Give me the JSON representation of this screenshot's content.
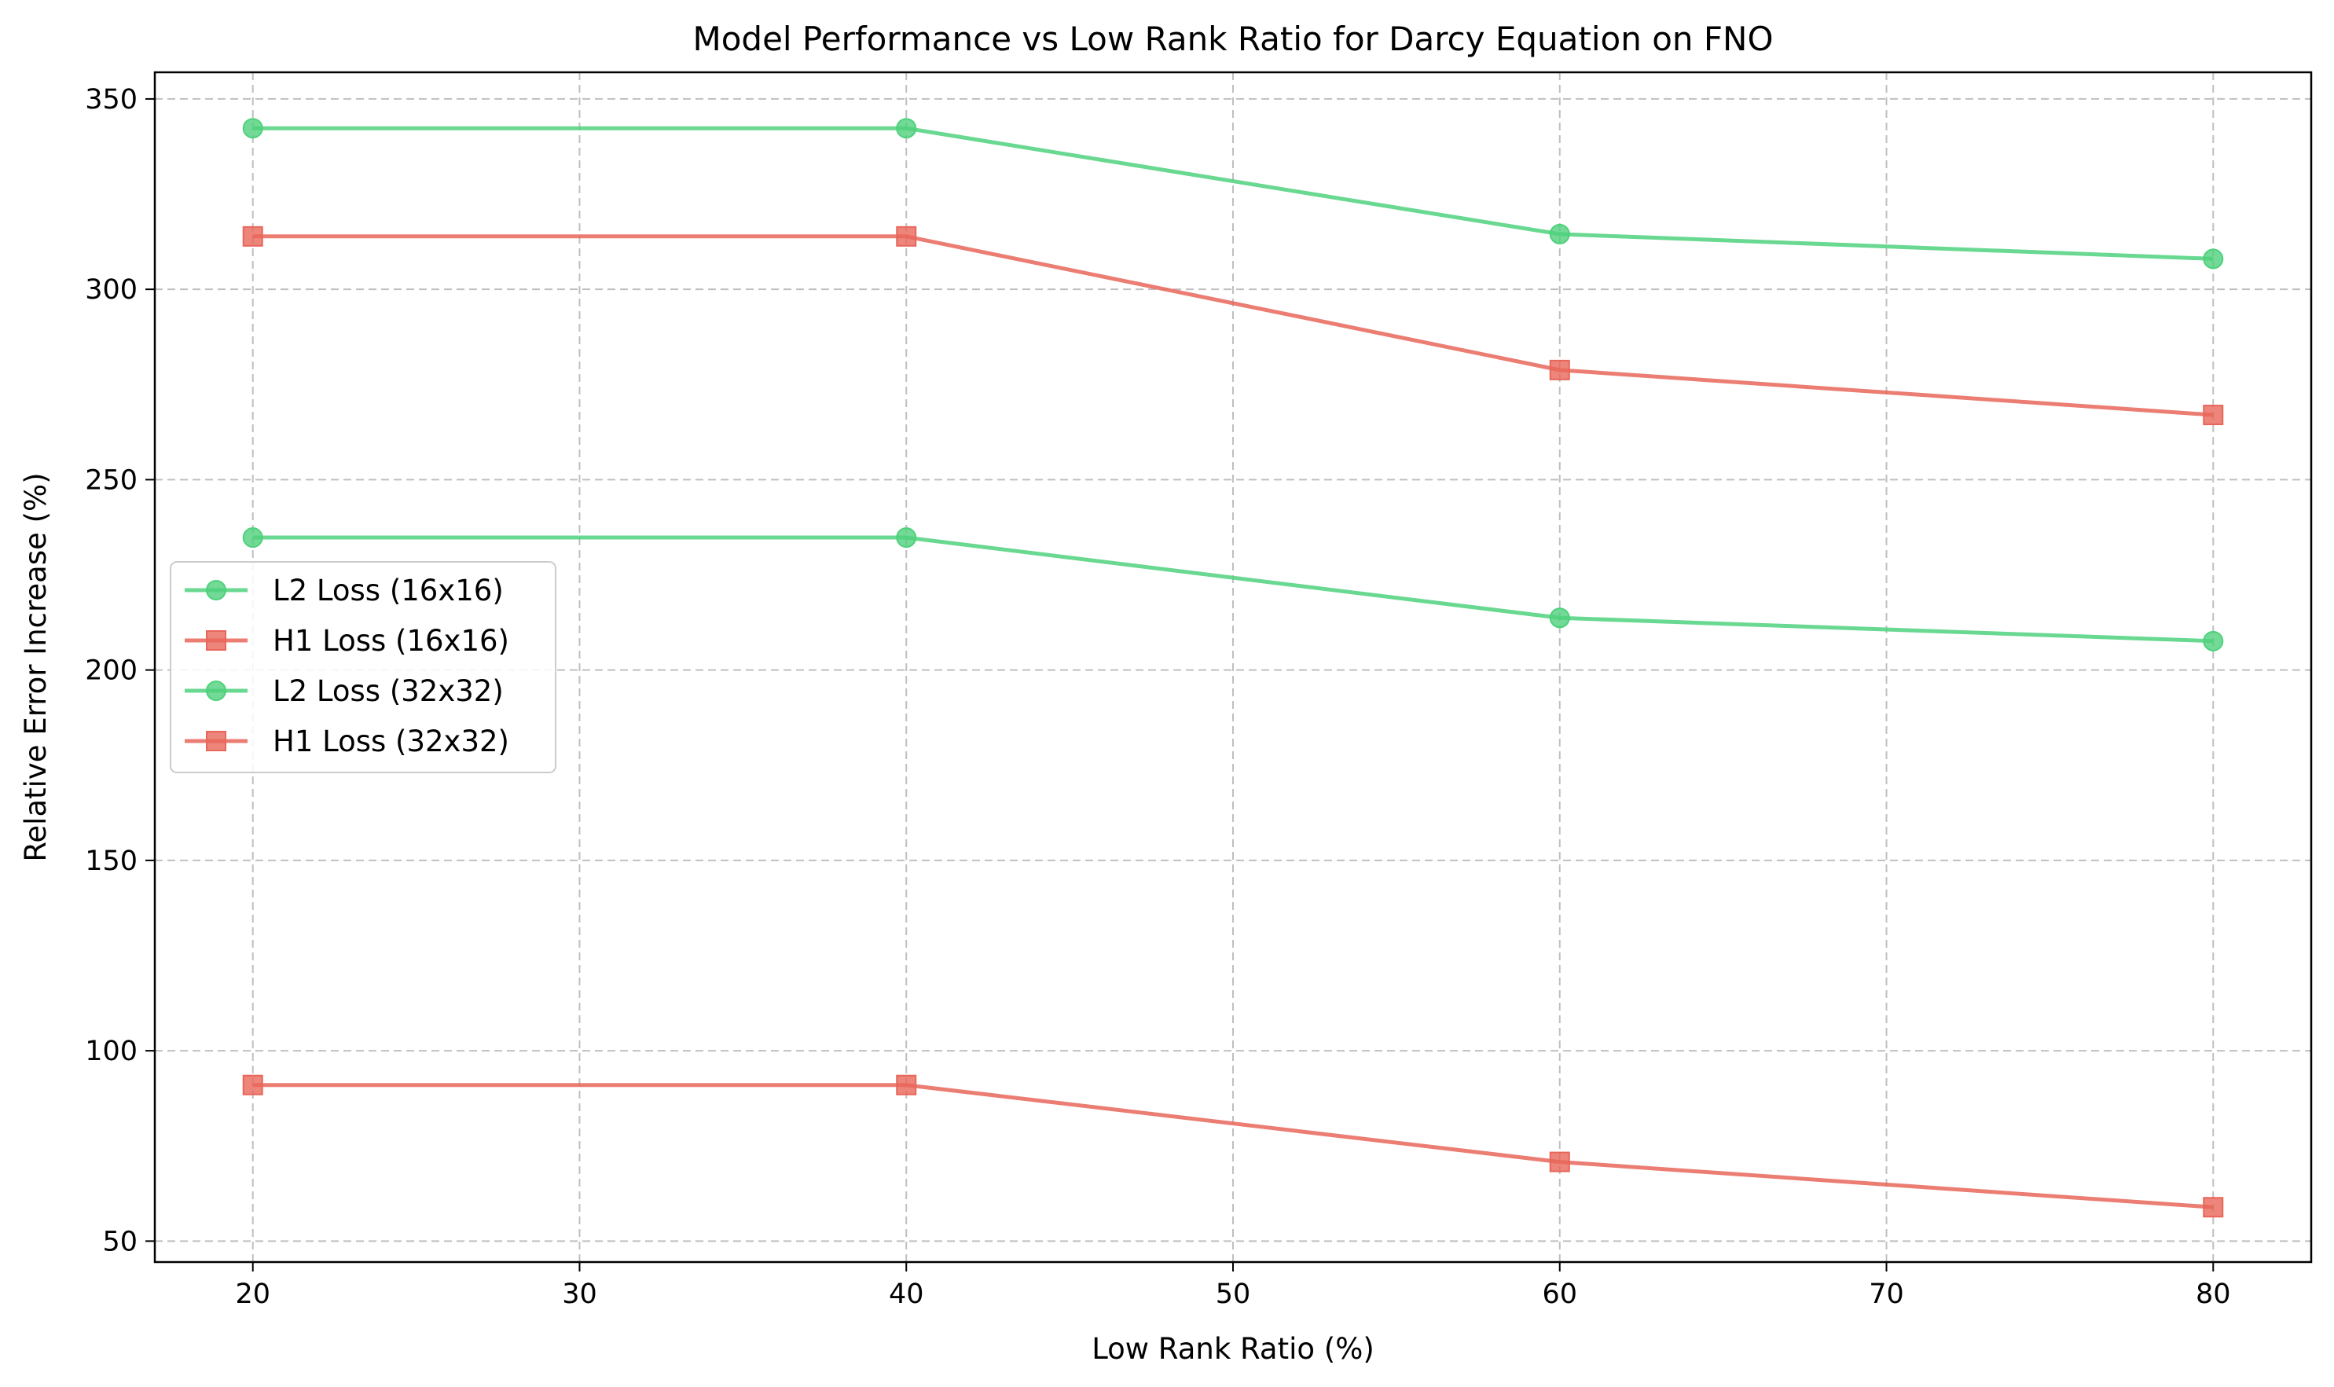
{
  "chart_data": {
    "type": "line",
    "title": "Model Performance vs Low Rank Ratio for Darcy Equation on FNO",
    "xlabel": "Low Rank Ratio (%)",
    "ylabel": "Relative Error Increase (%)",
    "x": [
      20,
      40,
      60,
      80
    ],
    "xlim": [
      17,
      83
    ],
    "ylim": [
      44.5,
      357
    ],
    "xticks": [
      20,
      30,
      40,
      50,
      60,
      70,
      80
    ],
    "yticks": [
      50,
      100,
      150,
      200,
      250,
      300,
      350
    ],
    "grid": true,
    "legend_position": "center-left",
    "series": [
      {
        "name": "L2 Loss (16x16)",
        "color": "#4fd17c",
        "marker": "circle",
        "values": [
          342.3,
          342.3,
          314.5,
          308.0
        ]
      },
      {
        "name": "H1 Loss (16x16)",
        "color": "#e8665a",
        "marker": "square",
        "values": [
          91.0,
          91.0,
          70.8,
          58.9
        ]
      },
      {
        "name": "L2 Loss (32x32)",
        "color": "#4fd17c",
        "marker": "circle",
        "values": [
          234.8,
          234.8,
          213.7,
          207.6
        ]
      },
      {
        "name": "H1 Loss (32x32)",
        "color": "#e8665a",
        "marker": "square",
        "values": [
          313.9,
          313.9,
          278.8,
          267.0
        ]
      }
    ]
  }
}
